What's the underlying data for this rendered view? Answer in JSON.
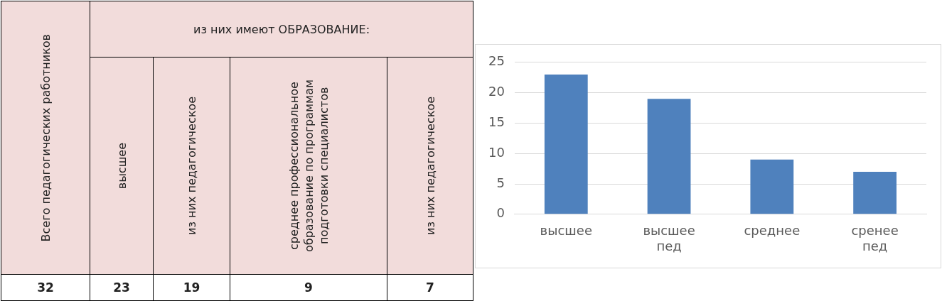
{
  "chart_data": [
    {
      "type": "other",
      "annotations": [
        "Всего педагогических работников",
        "из них имеют ОБРАЗОВАНИЕ:",
        "высшее",
        "из них педагогическое",
        "среднее профессиональное образование по программам подготовки специалистов",
        "из них педагогическое",
        "32",
        "23",
        "19",
        "9",
        "7"
      ]
    },
    {
      "type": "bar",
      "categories": [
        "высшее",
        "высшее пед",
        "среднее",
        "сренее пед"
      ],
      "values": [
        23,
        19,
        9,
        7
      ],
      "color": "#4f81bd",
      "ylim": [
        0,
        25
      ],
      "yticks": [
        0,
        5,
        10,
        15,
        20,
        25
      ],
      "grid": "y"
    }
  ]
}
